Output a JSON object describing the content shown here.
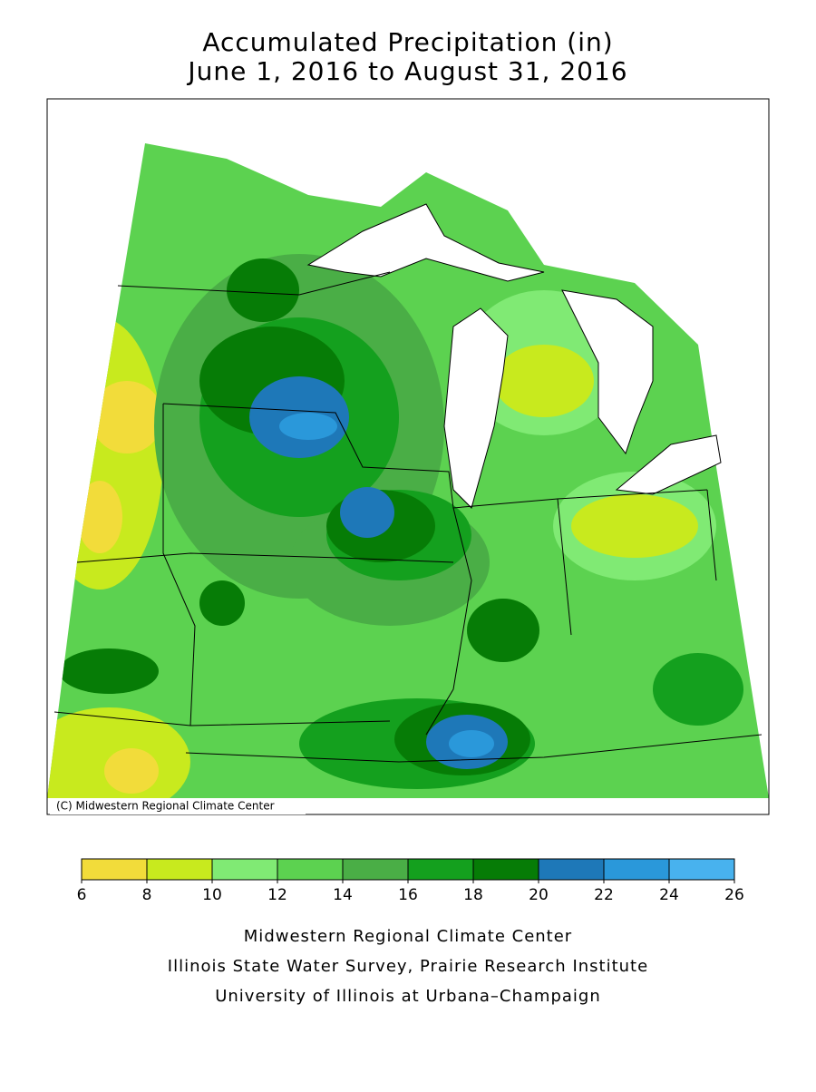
{
  "title": [
    "Accumulated Precipitation (in)",
    "June 1, 2016 to August 31, 2016"
  ],
  "map": {
    "credit": "(C) Midwestern Regional Climate Center"
  },
  "legend": {
    "bins": [
      6,
      8,
      10,
      12,
      14,
      16,
      18,
      20,
      22,
      24,
      26
    ],
    "colors": [
      "#f2dc3a",
      "#c8ea1e",
      "#80ea74",
      "#5cd250",
      "#4aae46",
      "#14a01e",
      "#067c06",
      "#1e78b8",
      "#2a98da",
      "#48b2ee"
    ]
  },
  "footer": [
    "Midwestern Regional Climate Center",
    "Illinois State Water Survey, Prairie Research Institute",
    "University of Illinois at Urbana–Champaign"
  ]
}
